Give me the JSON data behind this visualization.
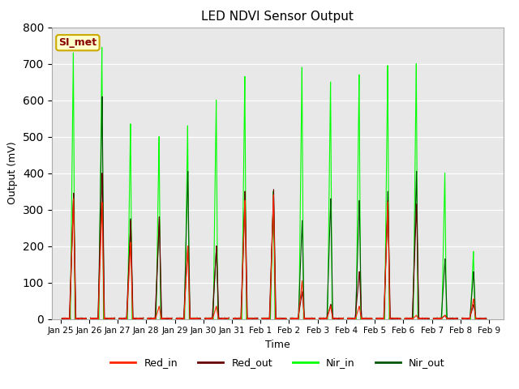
{
  "title": "LED NDVI Sensor Output",
  "xlabel": "Time",
  "ylabel": "Output (mV)",
  "ylim": [
    0,
    800
  ],
  "background_color": "#e8e8e8",
  "legend_label": "SI_met",
  "legend_box_facecolor": "#ffffcc",
  "legend_box_edgecolor": "#ccaa00",
  "series": {
    "Red_in": {
      "color": "#ff2200",
      "lw": 0.8
    },
    "Red_out": {
      "color": "#660000",
      "lw": 0.8
    },
    "Nir_in": {
      "color": "#00ff00",
      "lw": 0.8
    },
    "Nir_out": {
      "color": "#005500",
      "lw": 0.8
    }
  },
  "x_tick_labels": [
    "Jan 25",
    "Jan 26",
    "Jan 27",
    "Jan 28",
    "Jan 29",
    "Jan 30",
    "Jan 31",
    "Feb 1",
    "Feb 2",
    "Feb 3",
    "Feb 4",
    "Feb 5",
    "Feb 6",
    "Feb 7",
    "Feb 8",
    "Feb 9"
  ],
  "x_tick_positions": [
    0,
    1,
    2,
    3,
    4,
    5,
    6,
    7,
    8,
    9,
    10,
    11,
    12,
    13,
    14,
    15
  ],
  "day_params": [
    {
      "label": "Jan25",
      "red_in": 330,
      "red_out": 345,
      "nir_in": 730,
      "nir_out": 345
    },
    {
      "label": "Jan26",
      "red_in": 320,
      "red_out": 400,
      "nir_in": 745,
      "nir_out": 610
    },
    {
      "label": "Jan27",
      "red_in": 210,
      "red_out": 270,
      "nir_in": 535,
      "nir_out": 275
    },
    {
      "label": "Jan28",
      "red_in": 35,
      "red_out": 280,
      "nir_in": 500,
      "nir_out": 280
    },
    {
      "label": "Jan29",
      "red_in": 200,
      "red_out": 200,
      "nir_in": 530,
      "nir_out": 405
    },
    {
      "label": "Jan30",
      "red_in": 35,
      "red_out": 200,
      "nir_in": 600,
      "nir_out": 200
    },
    {
      "label": "Jan31",
      "red_in": 325,
      "red_out": 350,
      "nir_in": 665,
      "nir_out": 350
    },
    {
      "label": "Feb1",
      "red_in": 340,
      "red_out": 355,
      "nir_in": 350,
      "nir_out": 350
    },
    {
      "label": "Feb2",
      "red_in": 105,
      "red_out": 75,
      "nir_in": 690,
      "nir_out": 270
    },
    {
      "label": "Feb3",
      "red_in": 35,
      "red_out": 40,
      "nir_in": 650,
      "nir_out": 330
    },
    {
      "label": "Feb4",
      "red_in": 35,
      "red_out": 130,
      "nir_in": 670,
      "nir_out": 325
    },
    {
      "label": "Feb5",
      "red_in": 320,
      "red_out": 325,
      "nir_in": 695,
      "nir_out": 350
    },
    {
      "label": "Feb6",
      "red_in": 10,
      "red_out": 315,
      "nir_in": 700,
      "nir_out": 405
    },
    {
      "label": "Feb7",
      "red_in": 10,
      "red_out": 10,
      "nir_in": 400,
      "nir_out": 165
    },
    {
      "label": "Feb8",
      "red_in": 55,
      "red_out": 40,
      "nir_in": 185,
      "nir_out": 130
    }
  ]
}
